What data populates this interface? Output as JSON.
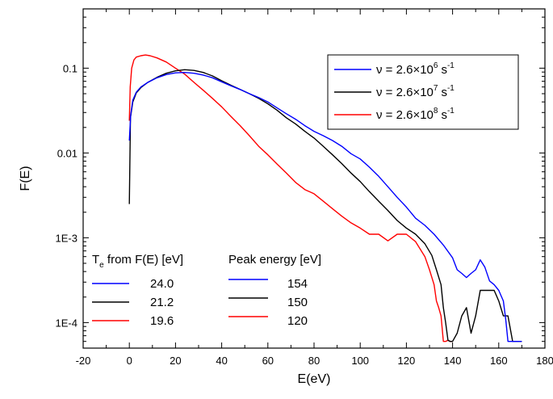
{
  "chart_data": {
    "type": "line",
    "xlabel": "E(eV)",
    "ylabel": "F(E)",
    "xlim": [
      -20,
      180
    ],
    "ylim": [
      5e-05,
      0.5
    ],
    "yscale": "log",
    "xticks": [
      -20,
      0,
      20,
      40,
      60,
      80,
      100,
      120,
      140,
      160,
      180
    ],
    "xtick_labels": [
      "-20",
      "0",
      "20",
      "40",
      "60",
      "80",
      "100",
      "120",
      "140",
      "160",
      "180"
    ],
    "yticks": [
      0.0001,
      0.001,
      0.01,
      0.1
    ],
    "ytick_labels": [
      "1E-4",
      "1E-3",
      "0.01",
      "0.1"
    ],
    "grid": false,
    "legend_position": "top-right",
    "series": [
      {
        "name": "ν = 2.6×10⁶ s⁻¹",
        "nu_prefix": "ν = 2.6×10",
        "nu_exp": "6",
        "nu_unit": "s",
        "nu_unit_exp": "-1",
        "color": "#0000ff",
        "Te": "24.0",
        "peak": "154",
        "x": [
          0,
          0.6,
          1.5,
          3,
          5,
          8,
          12,
          16,
          20,
          24,
          28,
          32,
          36,
          40,
          44,
          48,
          52,
          56,
          60,
          64,
          68,
          72,
          76,
          80,
          84,
          88,
          92,
          96,
          100,
          104,
          108,
          112,
          116,
          120,
          124,
          128,
          132,
          136,
          140,
          142,
          144,
          146,
          148,
          150,
          152,
          154,
          156,
          158,
          160,
          162,
          163,
          164,
          170
        ],
        "y": [
          0.014,
          0.028,
          0.042,
          0.052,
          0.06,
          0.068,
          0.077,
          0.084,
          0.088,
          0.089,
          0.087,
          0.083,
          0.077,
          0.069,
          0.062,
          0.056,
          0.05,
          0.045,
          0.04,
          0.034,
          0.029,
          0.025,
          0.021,
          0.018,
          0.016,
          0.014,
          0.012,
          0.0098,
          0.0085,
          0.0068,
          0.0053,
          0.004,
          0.003,
          0.0023,
          0.0017,
          0.0014,
          0.0011,
          0.00082,
          0.00058,
          0.00042,
          0.00038,
          0.00034,
          0.00038,
          0.00042,
          0.00055,
          0.00045,
          0.00031,
          0.00028,
          0.00024,
          0.00018,
          0.00011,
          6e-05,
          6e-05
        ]
      },
      {
        "name": "ν = 2.6×10⁷ s⁻¹",
        "nu_prefix": "ν = 2.6×10",
        "nu_exp": "7",
        "nu_unit": "s",
        "nu_unit_exp": "-1",
        "color": "#000000",
        "Te": "21.2",
        "peak": "150",
        "x": [
          0,
          0.5,
          1.5,
          3,
          5,
          8,
          12,
          16,
          20,
          24,
          28,
          32,
          36,
          40,
          44,
          48,
          52,
          56,
          60,
          64,
          68,
          72,
          76,
          80,
          84,
          88,
          92,
          96,
          100,
          104,
          108,
          112,
          116,
          120,
          124,
          128,
          131,
          133,
          135,
          136,
          137,
          138,
          139,
          140,
          142,
          144,
          146,
          148,
          150,
          152,
          154,
          156,
          158,
          160,
          162,
          164,
          166,
          168,
          170
        ],
        "y": [
          0.0025,
          0.026,
          0.04,
          0.051,
          0.059,
          0.068,
          0.078,
          0.087,
          0.093,
          0.096,
          0.094,
          0.089,
          0.081,
          0.071,
          0.063,
          0.056,
          0.05,
          0.044,
          0.038,
          0.032,
          0.026,
          0.022,
          0.018,
          0.015,
          0.012,
          0.0095,
          0.0075,
          0.0058,
          0.0046,
          0.0035,
          0.0027,
          0.0021,
          0.0016,
          0.0013,
          0.0011,
          0.00085,
          0.00062,
          0.00042,
          0.00028,
          0.00015,
          0.0001,
          6.2e-05,
          6e-05,
          6e-05,
          7.5e-05,
          0.00012,
          0.00015,
          7.5e-05,
          0.00012,
          0.00024,
          0.00024,
          0.00024,
          0.00024,
          0.00018,
          0.00012,
          0.00012,
          6e-05,
          6e-05,
          6e-05
        ]
      },
      {
        "name": "ν = 2.6×10⁸ s⁻¹",
        "nu_prefix": "ν = 2.6×10",
        "nu_exp": "8",
        "nu_unit": "s",
        "nu_unit_exp": "-1",
        "color": "#ff0000",
        "Te": "19.6",
        "peak": "120",
        "x": [
          0,
          0.4,
          1,
          2,
          3,
          5,
          7,
          9,
          12,
          16,
          20,
          24,
          28,
          32,
          36,
          40,
          44,
          48,
          52,
          56,
          60,
          64,
          68,
          72,
          76,
          80,
          84,
          88,
          92,
          96,
          100,
          104,
          108,
          112,
          116,
          120,
          124,
          128,
          130,
          132,
          133,
          134,
          135,
          136,
          137,
          138,
          139,
          140
        ],
        "y": [
          0.024,
          0.06,
          0.1,
          0.125,
          0.135,
          0.14,
          0.143,
          0.14,
          0.132,
          0.118,
          0.1,
          0.085,
          0.068,
          0.055,
          0.044,
          0.035,
          0.027,
          0.021,
          0.016,
          0.012,
          0.0095,
          0.0074,
          0.0058,
          0.0045,
          0.0037,
          0.0033,
          0.0027,
          0.0022,
          0.0018,
          0.0015,
          0.0013,
          0.0011,
          0.0011,
          0.00092,
          0.0011,
          0.0011,
          0.0009,
          0.0006,
          0.00042,
          0.00028,
          0.00018,
          0.00015,
          0.00012,
          6e-05,
          6e-05,
          6.2e-05,
          6e-05,
          6e-05
        ]
      }
    ],
    "bottom_legend": {
      "te_prefix": "T",
      "te_sub": "e",
      "te_suffix": " from F(E) [eV]",
      "peak_header": "Peak energy [eV]"
    }
  }
}
